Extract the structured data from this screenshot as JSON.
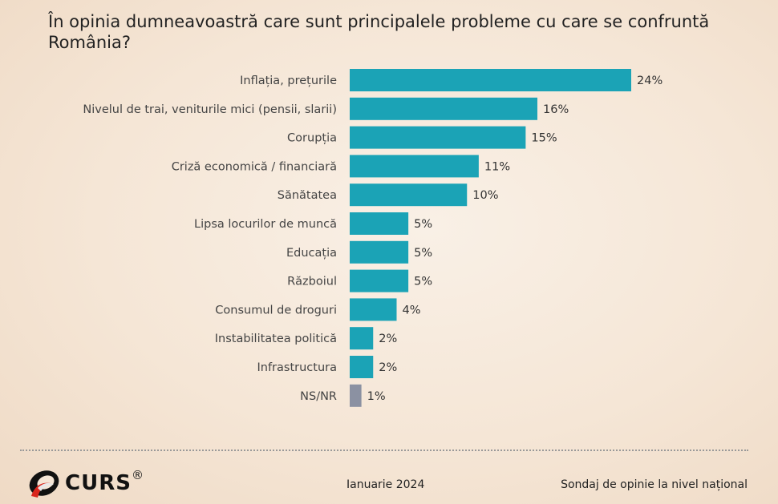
{
  "chart_data": {
    "type": "bar",
    "orientation": "horizontal",
    "title": "În opinia dumneavoastră care sunt principalele probleme cu care se confruntă România?",
    "categories": [
      "Inflația, prețurile",
      "Nivelul de trai, veniturile mici (pensii, slarii)",
      "Corupția",
      "Criză economică / financiară",
      "Sănătatea",
      "Lipsa locurilor de muncă",
      "Educația",
      "Războiul",
      "Consumul de droguri",
      "Instabilitatea politică",
      "Infrastructura",
      "NS/NR"
    ],
    "values": [
      24,
      16,
      15,
      11,
      10,
      5,
      5,
      5,
      4,
      2,
      2,
      1
    ],
    "value_suffix": "%",
    "xlim": [
      0,
      24
    ],
    "grid": false,
    "colors": {
      "bar": "#1ba3b6",
      "ns_bar": "#8b91a2"
    }
  },
  "footer": {
    "logo": "CURS",
    "registered": "®",
    "date": "Ianuarie 2024",
    "note": "Sondaj de opinie la nivel național"
  }
}
